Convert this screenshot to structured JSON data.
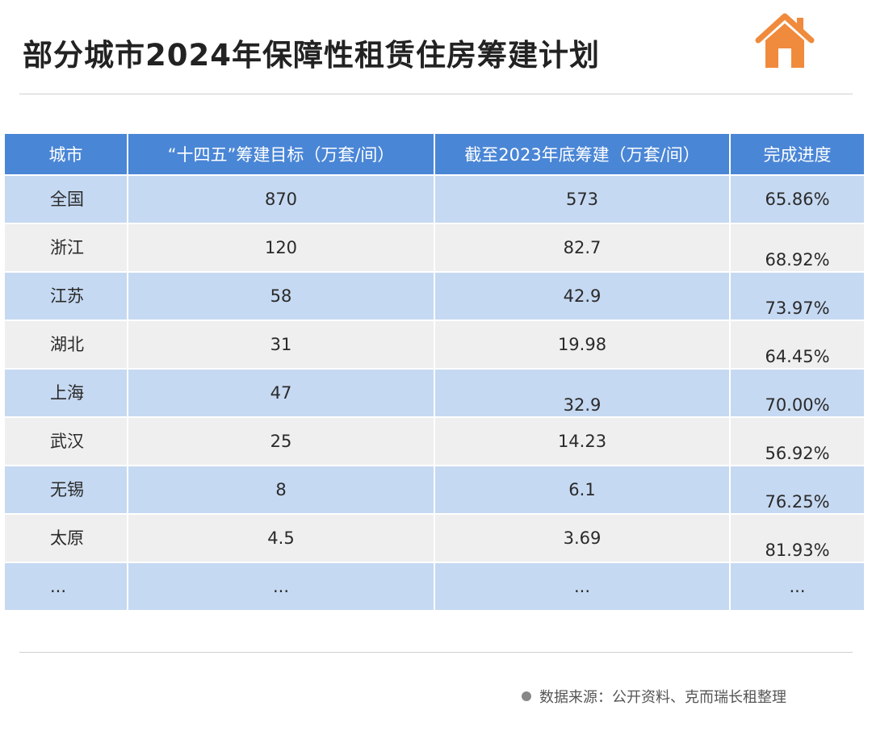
{
  "title": "部分城市2024年保障性租赁住房筹建计划",
  "icon": "house-icon",
  "colors": {
    "header": "#4a86d6",
    "row_blue": "#c6d9f2",
    "row_gray": "#efefef",
    "icon": "#f08a3c"
  },
  "chart_data": {
    "type": "table",
    "columns": [
      "城市",
      "“十四五”筹建目标（万套/间）",
      "截至2023年底筹建（万套/间）",
      "完成进度"
    ],
    "rows": [
      {
        "city": "全国",
        "target": "870",
        "built": "573",
        "progress": "65.86%"
      },
      {
        "city": "浙江",
        "target": "120",
        "built": "82.7",
        "progress": "68.92%"
      },
      {
        "city": "江苏",
        "target": "58",
        "built": "42.9",
        "progress": "73.97%"
      },
      {
        "city": "湖北",
        "target": "31",
        "built": "19.98",
        "progress": "64.45%"
      },
      {
        "city": "上海",
        "target": "47",
        "built": "32.9",
        "progress": "70.00%"
      },
      {
        "city": "武汉",
        "target": "25",
        "built": "14.23",
        "progress": "56.92%"
      },
      {
        "city": "无锡",
        "target": "8",
        "built": "6.1",
        "progress": "76.25%"
      },
      {
        "city": "太原",
        "target": "4.5",
        "built": "3.69",
        "progress": "81.93%"
      },
      {
        "city": "...",
        "target": "...",
        "built": "...",
        "progress": "..."
      }
    ]
  },
  "source": "数据来源：公开资料、克而瑞长租整理"
}
